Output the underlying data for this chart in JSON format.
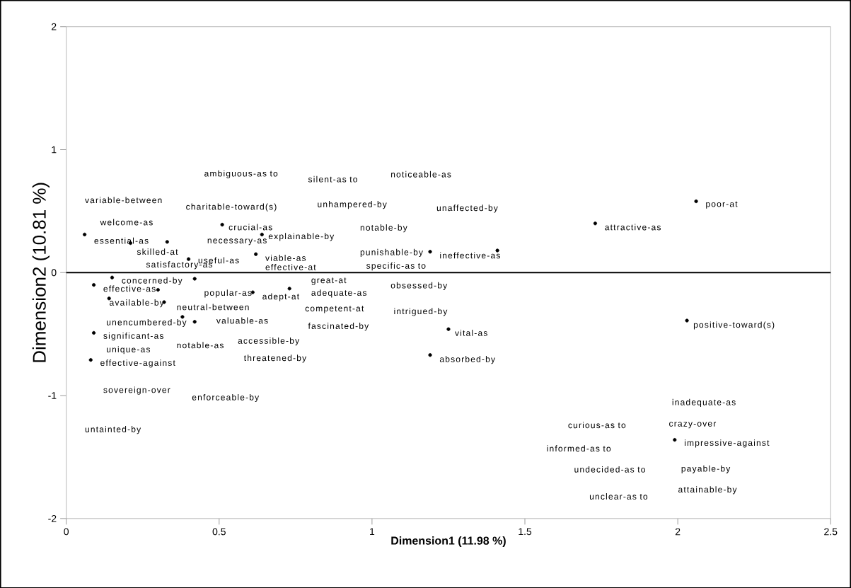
{
  "chart_data": {
    "type": "scatter",
    "xlabel": "Dimension1 (11.98 %)",
    "ylabel": "Dimension2 (10.81 %)",
    "xlim": [
      0,
      2.5
    ],
    "ylim": [
      -2,
      2
    ],
    "xticks": [
      0,
      0.5,
      1,
      1.5,
      2,
      2.5
    ],
    "yticks": [
      -2,
      -1,
      0,
      1,
      2
    ],
    "marker": "circle",
    "ref_lines": [
      {
        "axis": "y",
        "value": 0,
        "color": "#000000"
      }
    ],
    "series": [
      {
        "color": "#000000",
        "x": [
          0.06,
          0.21,
          0.33,
          0.51,
          0.64,
          0.4,
          0.62,
          0.15,
          0.42,
          0.09,
          0.3,
          0.14,
          0.32,
          0.38,
          0.42,
          0.61,
          0.73,
          0.09,
          0.08,
          1.19,
          1.41,
          1.25,
          1.19,
          2.06,
          1.73,
          2.03,
          1.99
        ],
        "values": [
          0.31,
          0.24,
          0.25,
          0.39,
          0.31,
          0.11,
          0.15,
          -0.04,
          -0.05,
          -0.1,
          -0.14,
          -0.21,
          -0.24,
          -0.36,
          -0.4,
          -0.16,
          -0.13,
          -0.49,
          -0.71,
          0.17,
          0.18,
          -0.46,
          -0.67,
          0.58,
          0.4,
          -0.39,
          -1.36
        ]
      }
    ],
    "annotations": [
      "variable-between",
      "charitable-toward(s)",
      "ambiguous-as to",
      "silent-as to",
      "noticeable-as",
      "unhampered-by",
      "unaffected-by",
      "welcome-as",
      "crucial-as",
      "explainable-by",
      "notable-by",
      "essential-as",
      "necessary-as",
      "skilled-at",
      "useful-as",
      "viable-as",
      "punishable-by",
      "ineffective-as",
      "satisfactory-as",
      "effective-at",
      "specific-as to",
      "concerned-by",
      "great-at",
      "effective-as",
      "popular-as",
      "adept-at",
      "adequate-as",
      "obsessed-by",
      "available-by",
      "neutral-between",
      "competent-at",
      "intrigued-by",
      "unencumbered-by",
      "valuable-as",
      "fascinated-by",
      "vital-as",
      "significant-as",
      "unique-as",
      "notable-as",
      "accessible-by",
      "threatened-by",
      "absorbed-by",
      "effective-against",
      "sovereign-over",
      "enforceable-by",
      "untainted-by",
      "poor-at",
      "attractive-as",
      "positive-toward(s)",
      "inadequate-as",
      "curious-as to",
      "crazy-over",
      "impressive-against",
      "informed-as to",
      "undecided-as to",
      "payable-by",
      "unclear-as to",
      "attainable-by"
    ]
  }
}
